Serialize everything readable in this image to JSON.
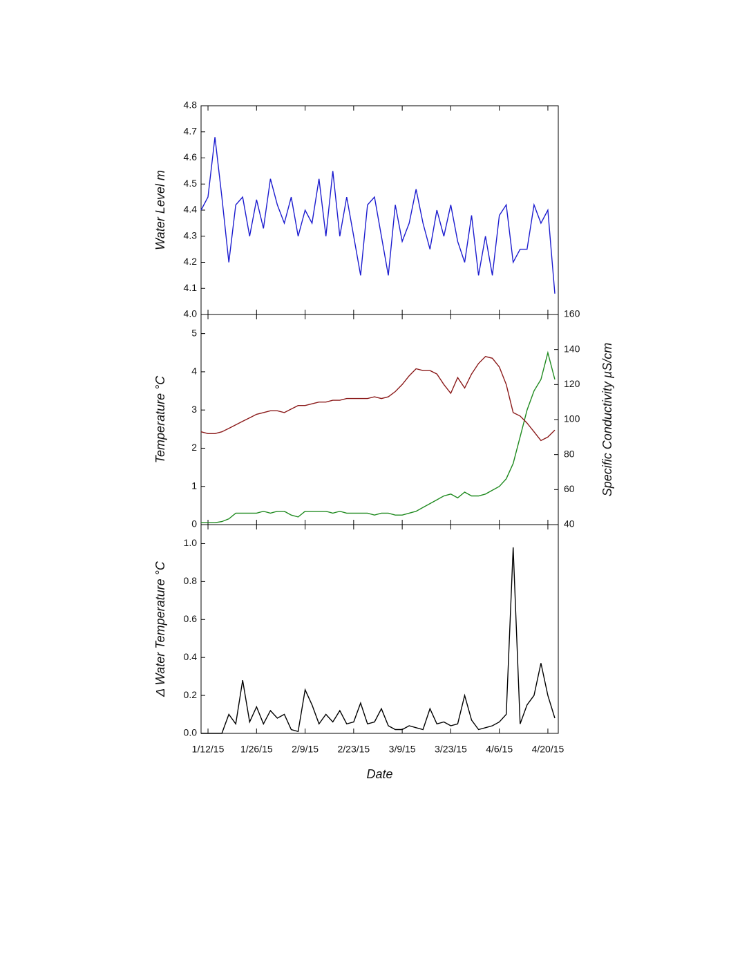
{
  "chart_data": [
    {
      "type": "line",
      "ylabel": "Water Level m",
      "x": [
        "1/10/15",
        "1/12/15",
        "1/14/15",
        "1/16/15",
        "1/18/15",
        "1/20/15",
        "1/22/15",
        "1/24/15",
        "1/26/15",
        "1/28/15",
        "1/30/15",
        "2/1/15",
        "2/3/15",
        "2/5/15",
        "2/7/15",
        "2/9/15",
        "2/11/15",
        "2/13/15",
        "2/15/15",
        "2/17/15",
        "2/19/15",
        "2/21/15",
        "2/23/15",
        "2/25/15",
        "2/27/15",
        "3/1/15",
        "3/3/15",
        "3/5/15",
        "3/7/15",
        "3/9/15",
        "3/11/15",
        "3/13/15",
        "3/15/15",
        "3/17/15",
        "3/19/15",
        "3/21/15",
        "3/23/15",
        "3/25/15",
        "3/27/15",
        "3/29/15",
        "3/31/15",
        "4/2/15",
        "4/4/15",
        "4/6/15",
        "4/8/15",
        "4/10/15",
        "4/12/15",
        "4/14/15",
        "4/16/15",
        "4/18/15",
        "4/20/15",
        "4/22/15"
      ],
      "xlim": [
        "1/10/15",
        "4/23/15"
      ],
      "ylim": [
        4.0,
        4.8
      ],
      "yticks": [
        {
          "value": 4.0,
          "label": "4.0"
        },
        4.1,
        4.2,
        4.3,
        4.4,
        4.5,
        4.6,
        4.7,
        4.8
      ],
      "series": [
        {
          "name": "Water Level",
          "color": "#1c1ccf",
          "values": [
            4.4,
            4.45,
            4.68,
            4.45,
            4.2,
            4.42,
            4.45,
            4.3,
            4.44,
            4.33,
            4.52,
            4.42,
            4.35,
            4.45,
            4.3,
            4.4,
            4.35,
            4.52,
            4.3,
            4.55,
            4.3,
            4.45,
            4.3,
            4.15,
            4.42,
            4.45,
            4.3,
            4.15,
            4.42,
            4.28,
            4.35,
            4.48,
            4.35,
            4.25,
            4.4,
            4.3,
            4.42,
            4.28,
            4.2,
            4.38,
            4.15,
            4.3,
            4.15,
            4.38,
            4.42,
            4.2,
            4.25,
            4.25,
            4.42,
            4.35,
            4.4,
            4.08
          ]
        }
      ]
    },
    {
      "type": "line",
      "ylabel": "Temperature °C",
      "y2label": "Specific Conductivity µS/cm",
      "x": [
        "1/10/15",
        "1/12/15",
        "1/14/15",
        "1/16/15",
        "1/18/15",
        "1/20/15",
        "1/22/15",
        "1/24/15",
        "1/26/15",
        "1/28/15",
        "1/30/15",
        "2/1/15",
        "2/3/15",
        "2/5/15",
        "2/7/15",
        "2/9/15",
        "2/11/15",
        "2/13/15",
        "2/15/15",
        "2/17/15",
        "2/19/15",
        "2/21/15",
        "2/23/15",
        "2/25/15",
        "2/27/15",
        "3/1/15",
        "3/3/15",
        "3/5/15",
        "3/7/15",
        "3/9/15",
        "3/11/15",
        "3/13/15",
        "3/15/15",
        "3/17/15",
        "3/19/15",
        "3/21/15",
        "3/23/15",
        "3/25/15",
        "3/27/15",
        "3/29/15",
        "3/31/15",
        "4/2/15",
        "4/4/15",
        "4/6/15",
        "4/8/15",
        "4/10/15",
        "4/12/15",
        "4/14/15",
        "4/16/15",
        "4/18/15",
        "4/20/15",
        "4/22/15"
      ],
      "xlim": [
        "1/10/15",
        "4/23/15"
      ],
      "ylim": [
        0,
        5.5
      ],
      "yticks": [
        0,
        1,
        2,
        3,
        4,
        5
      ],
      "y2lim": [
        40,
        160
      ],
      "y2ticks": [
        40,
        60,
        80,
        100,
        120,
        140,
        160
      ],
      "series": [
        {
          "name": "Temperature",
          "color": "#1f8a1f",
          "values": [
            0.05,
            0.05,
            0.05,
            0.08,
            0.15,
            0.3,
            0.3,
            0.3,
            0.3,
            0.35,
            0.3,
            0.35,
            0.35,
            0.25,
            0.2,
            0.35,
            0.35,
            0.35,
            0.35,
            0.3,
            0.35,
            0.3,
            0.3,
            0.3,
            0.3,
            0.25,
            0.3,
            0.3,
            0.25,
            0.25,
            0.3,
            0.35,
            0.45,
            0.55,
            0.65,
            0.75,
            0.8,
            0.7,
            0.85,
            0.75,
            0.75,
            0.8,
            0.9,
            1.0,
            1.2,
            1.6,
            2.3,
            3.0,
            3.5,
            3.8,
            4.5,
            3.8
          ]
        },
        {
          "name": "Specific Conductivity",
          "color": "#8b1a1a",
          "axis": "y2",
          "values": [
            93,
            92,
            92,
            93,
            95,
            97,
            99,
            101,
            103,
            104,
            105,
            105,
            104,
            106,
            108,
            108,
            109,
            110,
            110,
            111,
            111,
            112,
            112,
            112,
            112,
            113,
            112,
            113,
            116,
            120,
            125,
            129,
            128,
            128,
            126,
            120,
            115,
            124,
            118,
            126,
            132,
            136,
            135,
            130,
            120,
            104,
            102,
            98,
            93,
            88,
            90,
            94
          ]
        }
      ]
    },
    {
      "type": "line",
      "ylabel": "Δ Water Temperature °C",
      "xlabel": "Date",
      "x": [
        "1/10/15",
        "1/12/15",
        "1/14/15",
        "1/16/15",
        "1/18/15",
        "1/20/15",
        "1/22/15",
        "1/24/15",
        "1/26/15",
        "1/28/15",
        "1/30/15",
        "2/1/15",
        "2/3/15",
        "2/5/15",
        "2/7/15",
        "2/9/15",
        "2/11/15",
        "2/13/15",
        "2/15/15",
        "2/17/15",
        "2/19/15",
        "2/21/15",
        "2/23/15",
        "2/25/15",
        "2/27/15",
        "3/1/15",
        "3/3/15",
        "3/5/15",
        "3/7/15",
        "3/9/15",
        "3/11/15",
        "3/13/15",
        "3/15/15",
        "3/17/15",
        "3/19/15",
        "3/21/15",
        "3/23/15",
        "3/25/15",
        "3/27/15",
        "3/29/15",
        "3/31/15",
        "4/2/15",
        "4/4/15",
        "4/6/15",
        "4/8/15",
        "4/10/15",
        "4/12/15",
        "4/14/15",
        "4/16/15",
        "4/18/15",
        "4/20/15",
        "4/22/15"
      ],
      "xlim": [
        "1/10/15",
        "4/23/15"
      ],
      "xticks": [
        "1/12/15",
        "1/26/15",
        "2/9/15",
        "2/23/15",
        "3/9/15",
        "3/23/15",
        "4/6/15",
        "4/20/15"
      ],
      "ylim": [
        0,
        1.1
      ],
      "yticks": [
        {
          "value": 0,
          "label": "0.0"
        },
        0.2,
        0.4,
        0.6,
        0.8,
        {
          "value": 1.0,
          "label": "1.0"
        }
      ],
      "series": [
        {
          "name": "Δ Water Temperature",
          "color": "#000000",
          "values": [
            0,
            0,
            0,
            0,
            0.1,
            0.05,
            0.28,
            0.06,
            0.14,
            0.05,
            0.12,
            0.08,
            0.1,
            0.02,
            0.01,
            0.23,
            0.15,
            0.05,
            0.1,
            0.06,
            0.12,
            0.05,
            0.06,
            0.16,
            0.05,
            0.06,
            0.13,
            0.04,
            0.02,
            0.02,
            0.04,
            0.03,
            0.02,
            0.13,
            0.05,
            0.06,
            0.04,
            0.05,
            0.2,
            0.07,
            0.02,
            0.03,
            0.04,
            0.06,
            0.1,
            0.98,
            0.05,
            0.15,
            0.2,
            0.37,
            0.2,
            0.08
          ]
        }
      ]
    }
  ]
}
